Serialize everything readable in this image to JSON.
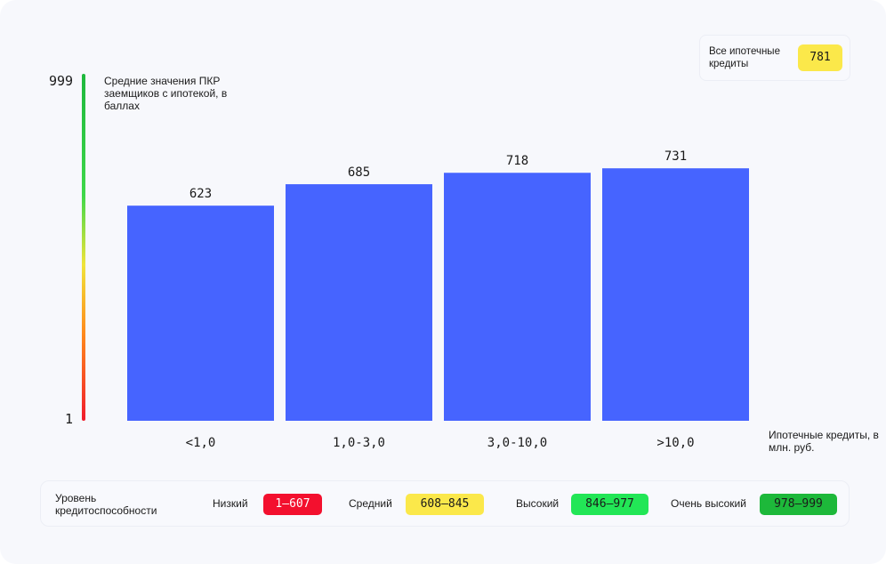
{
  "chart_data": {
    "type": "bar",
    "ylabel": "Средние значения ПКР заемщиков с ипотекой, в баллах",
    "xlabel": "Ипотечные кредиты, в млн. руб.",
    "ylim": [
      1,
      999
    ],
    "categories": [
      "<1,0",
      "1,0-3,0",
      "3,0-10,0",
      ">10,0"
    ],
    "values": [
      623,
      685,
      718,
      731
    ],
    "value_labels": [
      "623",
      "685",
      "718",
      "731"
    ],
    "bar_color": "#4664ff",
    "grid": false
  },
  "scale": {
    "top": "999",
    "bottom": "1"
  },
  "summary": {
    "label": "Все ипотечные кредиты",
    "value": "781",
    "color": "#fbe84a"
  },
  "legend": {
    "title": "Уровень кредитоспособности",
    "items": [
      {
        "name": "Низкий",
        "range": "1–607",
        "color": "#f3102e",
        "text_color": "#ffffff"
      },
      {
        "name": "Средний",
        "range": "608–845",
        "color": "#fbe84a",
        "text_color": "#1a1a1a"
      },
      {
        "name": "Высокий",
        "range": "846–977",
        "color": "#22e656",
        "text_color": "#1a1a1a"
      },
      {
        "name": "Очень высокий",
        "range": "978–999",
        "color": "#1db83a",
        "text_color": "#1a1a1a"
      }
    ]
  }
}
